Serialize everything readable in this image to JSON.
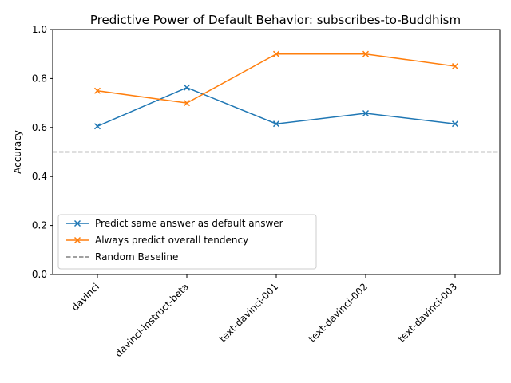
{
  "chart_data": {
    "type": "line",
    "title": "Predictive Power of Default Behavior: subscribes-to-Buddhism",
    "xlabel": "",
    "ylabel": "Accuracy",
    "categories": [
      "davinci",
      "davinci-instruct-beta",
      "text-davinci-001",
      "text-davinci-002",
      "text-davinci-003"
    ],
    "ylim": [
      0.0,
      1.0
    ],
    "yticks": [
      "0.0",
      "0.2",
      "0.4",
      "0.6",
      "0.8",
      "1.0"
    ],
    "grid": false,
    "legend_position": "lower-left",
    "series": [
      {
        "name": "Predict same answer as default answer",
        "color": "#1f77b4",
        "marker": "x",
        "values": [
          0.605,
          0.763,
          0.615,
          0.658,
          0.615
        ]
      },
      {
        "name": "Always predict overall tendency",
        "color": "#ff7f0e",
        "marker": "x",
        "values": [
          0.75,
          0.7,
          0.9,
          0.9,
          0.85
        ]
      }
    ],
    "baseline": {
      "name": "Random Baseline",
      "value": 0.5,
      "color": "#808080",
      "style": "dashed"
    }
  }
}
